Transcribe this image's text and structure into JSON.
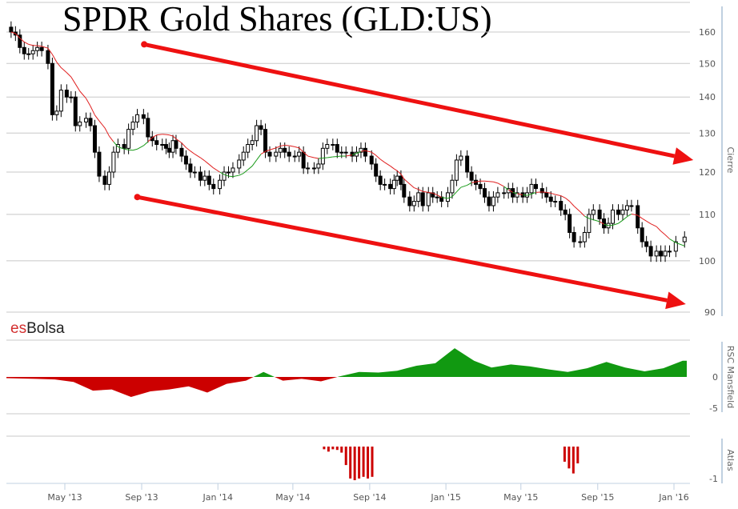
{
  "chart_data": {
    "type": "candlestick",
    "title": "SPDR Gold Shares (GLD:US)",
    "watermark": {
      "prefix": "es",
      "suffix": "Bolsa"
    },
    "x_ticks": [
      "May '13",
      "Sep '13",
      "Jan '14",
      "May '14",
      "Sep '14",
      "Jan '15",
      "May '15",
      "Sep '15",
      "Jan '16"
    ],
    "x_tick_dates": [
      "2013-05-01",
      "2013-09-01",
      "2014-01-01",
      "2014-05-01",
      "2014-09-01",
      "2015-01-01",
      "2015-05-01",
      "2015-09-01",
      "2016-01-01"
    ],
    "price_panel": {
      "ylabel": "Cierre",
      "scale": "log",
      "ylim": [
        90,
        165
      ],
      "y_ticks": [
        "160",
        "150",
        "140",
        "130",
        "120",
        "110",
        "100",
        "90"
      ],
      "grid": true,
      "weekly_closes": [
        {
          "month": "2013-02",
          "closes": [
            160,
            159,
            155,
            153
          ]
        },
        {
          "month": "2013-03",
          "closes": [
            153,
            154,
            155,
            154
          ]
        },
        {
          "month": "2013-04",
          "closes": [
            150,
            135,
            136,
            142
          ]
        },
        {
          "month": "2013-05",
          "closes": [
            140,
            140,
            132,
            133
          ]
        },
        {
          "month": "2013-06",
          "closes": [
            134,
            132,
            125,
            119
          ]
        },
        {
          "month": "2013-07",
          "closes": [
            117,
            120,
            125,
            127
          ]
        },
        {
          "month": "2013-08",
          "closes": [
            126,
            131,
            133,
            135
          ]
        },
        {
          "month": "2013-09",
          "closes": [
            134,
            129,
            128,
            127
          ]
        },
        {
          "month": "2013-10",
          "closes": [
            127,
            126,
            125,
            128,
            126
          ]
        },
        {
          "month": "2013-11",
          "closes": [
            124,
            122,
            120,
            120
          ]
        },
        {
          "month": "2013-12",
          "closes": [
            118,
            119,
            117,
            116
          ]
        },
        {
          "month": "2014-01",
          "closes": [
            118,
            120,
            120,
            121
          ]
        },
        {
          "month": "2014-02",
          "closes": [
            123,
            125,
            127,
            128
          ]
        },
        {
          "month": "2014-03",
          "closes": [
            132,
            131,
            125,
            124
          ]
        },
        {
          "month": "2014-04",
          "closes": [
            125,
            126,
            125,
            124
          ]
        },
        {
          "month": "2014-05",
          "closes": [
            124,
            125,
            121,
            121
          ]
        },
        {
          "month": "2014-06",
          "closes": [
            121,
            122,
            126,
            127
          ]
        },
        {
          "month": "2014-07",
          "closes": [
            127,
            125,
            125,
            125
          ]
        },
        {
          "month": "2014-08",
          "closes": [
            124,
            125,
            126,
            124
          ]
        },
        {
          "month": "2014-09",
          "closes": [
            122,
            119,
            117,
            117
          ]
        },
        {
          "month": "2014-10",
          "closes": [
            116,
            118,
            119,
            117,
            114
          ]
        },
        {
          "month": "2014-11",
          "closes": [
            112,
            113,
            115,
            112
          ]
        },
        {
          "month": "2014-12",
          "closes": [
            115,
            114,
            114,
            113
          ]
        },
        {
          "month": "2015-01",
          "closes": [
            115,
            118,
            123,
            124
          ]
        },
        {
          "month": "2015-02",
          "closes": [
            120,
            118,
            117,
            116
          ]
        },
        {
          "month": "2015-03",
          "closes": [
            114,
            112,
            114,
            115
          ]
        },
        {
          "month": "2015-04",
          "closes": [
            115,
            116,
            114,
            115
          ]
        },
        {
          "month": "2015-05",
          "closes": [
            114,
            115,
            117,
            116
          ]
        },
        {
          "month": "2015-06",
          "closes": [
            115,
            114,
            113,
            113
          ]
        },
        {
          "month": "2015-07",
          "closes": [
            111,
            110,
            106,
            104
          ]
        },
        {
          "month": "2015-08",
          "closes": [
            104,
            106,
            110,
            111
          ]
        },
        {
          "month": "2015-09",
          "closes": [
            109,
            107,
            108,
            111
          ]
        },
        {
          "month": "2015-10",
          "closes": [
            110,
            111,
            112,
            112
          ]
        },
        {
          "month": "2015-11",
          "closes": [
            107,
            104,
            103,
            101
          ]
        },
        {
          "month": "2015-12",
          "closes": [
            102,
            101,
            102,
            102
          ]
        },
        {
          "month": "2016-01",
          "closes": [
            104,
            105
          ]
        }
      ],
      "ma_colors": {
        "below": "#e02020",
        "above": "#1a9a1a"
      },
      "annotations": [
        {
          "type": "arrow",
          "color": "#ee1111",
          "from": {
            "date": "2013-09-05",
            "price": 156
          },
          "to": {
            "date": "2016-02-01",
            "price": 123
          }
        },
        {
          "type": "arrow",
          "color": "#ee1111",
          "from": {
            "date": "2013-08-25",
            "price": 114
          },
          "to": {
            "date": "2016-01-20",
            "price": 91.5
          }
        }
      ]
    },
    "rsc_panel": {
      "ylabel": "RSC Mansfield",
      "y_ticks": [
        "0",
        "-5"
      ],
      "ylim": [
        -6,
        6
      ],
      "pos_color": "#119911",
      "neg_color": "#cc0000",
      "values": [
        {
          "month": "2013-02",
          "v": -0.2
        },
        {
          "month": "2013-03",
          "v": -0.3
        },
        {
          "month": "2013-04",
          "v": -0.4
        },
        {
          "month": "2013-05",
          "v": -0.8
        },
        {
          "month": "2013-06",
          "v": -2.2
        },
        {
          "month": "2013-07",
          "v": -2.0
        },
        {
          "month": "2013-08",
          "v": -3.2
        },
        {
          "month": "2013-09",
          "v": -2.3
        },
        {
          "month": "2013-10",
          "v": -2.0
        },
        {
          "month": "2013-11",
          "v": -1.5
        },
        {
          "month": "2013-12",
          "v": -2.5
        },
        {
          "month": "2014-01",
          "v": -1.1
        },
        {
          "month": "2014-02",
          "v": -0.6
        },
        {
          "month": "2014-03",
          "v": 0.8
        },
        {
          "month": "2014-04",
          "v": -0.6
        },
        {
          "month": "2014-05",
          "v": -0.3
        },
        {
          "month": "2014-06",
          "v": -0.7
        },
        {
          "month": "2014-07",
          "v": 0.1
        },
        {
          "month": "2014-08",
          "v": 0.8
        },
        {
          "month": "2014-09",
          "v": 0.7
        },
        {
          "month": "2014-10",
          "v": 1.0
        },
        {
          "month": "2014-11",
          "v": 1.8
        },
        {
          "month": "2014-12",
          "v": 2.2
        },
        {
          "month": "2015-01",
          "v": 4.6
        },
        {
          "month": "2015-02",
          "v": 2.6
        },
        {
          "month": "2015-03",
          "v": 1.5
        },
        {
          "month": "2015-04",
          "v": 2.0
        },
        {
          "month": "2015-05",
          "v": 1.7
        },
        {
          "month": "2015-06",
          "v": 1.2
        },
        {
          "month": "2015-07",
          "v": 0.8
        },
        {
          "month": "2015-08",
          "v": 1.4
        },
        {
          "month": "2015-09",
          "v": 2.4
        },
        {
          "month": "2015-10",
          "v": 1.5
        },
        {
          "month": "2015-11",
          "v": 0.9
        },
        {
          "month": "2015-12",
          "v": 1.4
        },
        {
          "month": "2016-01",
          "v": 2.6
        }
      ]
    },
    "atlas_panel": {
      "ylabel": "Atlas",
      "y_ticks": [
        "-1"
      ],
      "ylim": [
        -1,
        0
      ],
      "bar_color": "#cc0000",
      "bars": [
        {
          "date": "2014-06-20",
          "v": -0.08
        },
        {
          "date": "2014-06-27",
          "v": -0.15
        },
        {
          "date": "2014-07-04",
          "v": -0.08
        },
        {
          "date": "2014-07-11",
          "v": -0.1
        },
        {
          "date": "2014-07-18",
          "v": -0.18
        },
        {
          "date": "2014-07-25",
          "v": -0.55
        },
        {
          "date": "2014-08-01",
          "v": -0.95
        },
        {
          "date": "2014-08-08",
          "v": -1.0
        },
        {
          "date": "2014-08-15",
          "v": -0.95
        },
        {
          "date": "2014-08-22",
          "v": -0.9
        },
        {
          "date": "2014-08-29",
          "v": -0.95
        },
        {
          "date": "2014-09-05",
          "v": -0.9
        },
        {
          "date": "2015-07-10",
          "v": -0.45
        },
        {
          "date": "2015-07-17",
          "v": -0.65
        },
        {
          "date": "2015-07-24",
          "v": -0.8
        },
        {
          "date": "2015-07-31",
          "v": -0.5
        }
      ]
    }
  }
}
